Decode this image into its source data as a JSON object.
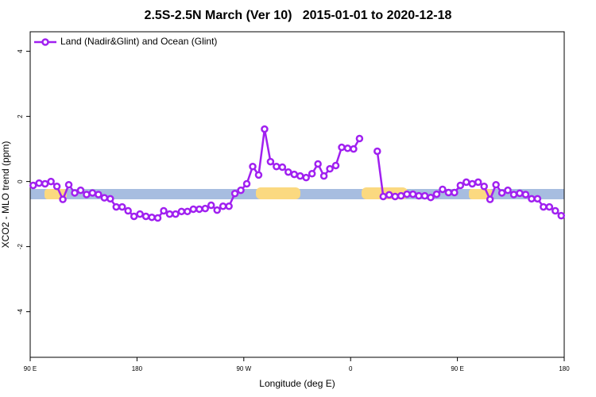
{
  "chart_data": {
    "type": "line",
    "title": "2.5S-2.5N March (Ver 10)   2015-01-01 to 2020-12-18",
    "x_label": "Longitude (deg E)",
    "y_label": "XCO2 - MLO trend (ppm)",
    "xlim": [
      90,
      540
    ],
    "ylim": [
      -5.4,
      4.6
    ],
    "xticks": [
      {
        "value": 90,
        "label": "90 E"
      },
      {
        "value": 180,
        "label": "180"
      },
      {
        "value": 270,
        "label": "90 W"
      },
      {
        "value": 360,
        "label": "0"
      },
      {
        "value": 450,
        "label": "90 E"
      },
      {
        "value": 540,
        "label": "180"
      }
    ],
    "yticks": [
      -4,
      -2,
      0,
      2,
      4
    ],
    "legend_position": "top-left",
    "x": [
      92.5,
      97.5,
      102.5,
      107.5,
      112.5,
      117.5,
      122.5,
      127.5,
      132.5,
      137.5,
      142.5,
      147.5,
      152.5,
      157.5,
      162.5,
      167.5,
      172.5,
      177.5,
      182.5,
      187.5,
      192.5,
      197.5,
      202.5,
      207.5,
      212.5,
      217.5,
      222.5,
      227.5,
      232.5,
      237.5,
      242.5,
      247.5,
      252.5,
      257.5,
      262.5,
      267.5,
      272.5,
      277.5,
      282.5,
      287.5,
      292.5,
      297.5,
      302.5,
      307.5,
      312.5,
      317.5,
      322.5,
      327.5,
      332.5,
      337.5,
      342.5,
      347.5,
      352.5,
      357.5,
      362.5,
      367.5,
      372.5,
      377.5,
      382.5,
      387.5,
      392.5,
      397.5,
      402.5,
      407.5,
      412.5,
      417.5,
      422.5,
      427.5,
      432.5,
      437.5,
      442.5,
      447.5,
      452.5,
      457.5,
      462.5,
      467.5,
      472.5,
      477.5,
      482.5,
      487.5,
      492.5,
      497.5,
      502.5,
      507.5,
      512.5,
      517.5,
      522.5,
      527.5,
      532.5,
      537.5
    ],
    "series": [
      {
        "name": "Land (Nadir&Glint) and Ocean (Glint)",
        "color": "#a020f0",
        "values": [
          -0.12,
          -0.05,
          -0.07,
          0,
          -0.15,
          -0.55,
          -0.1,
          -0.35,
          -0.27,
          -0.4,
          -0.35,
          -0.4,
          -0.5,
          -0.53,
          -0.78,
          -0.78,
          -0.9,
          -1.07,
          -1.0,
          -1.07,
          -1.1,
          -1.12,
          -0.9,
          -1.0,
          -1.0,
          -0.92,
          -0.92,
          -0.85,
          -0.85,
          -0.83,
          -0.73,
          -0.88,
          -0.76,
          -0.76,
          -0.37,
          -0.27,
          -0.07,
          0.46,
          0.2,
          1.61,
          0.61,
          0.46,
          0.44,
          0.29,
          0.22,
          0.17,
          0.12,
          0.24,
          0.54,
          0.17,
          0.39,
          0.49,
          1.05,
          1.02,
          1.0,
          1.32,
          null,
          null,
          0.93,
          -0.46,
          -0.41,
          -0.46,
          -0.44,
          -0.39,
          -0.39,
          -0.44,
          -0.44,
          -0.49,
          -0.39,
          -0.24,
          -0.34,
          -0.34,
          -0.12,
          -0.02,
          -0.07,
          -0.02,
          -0.15,
          -0.55,
          -0.1,
          -0.35,
          -0.27,
          -0.4,
          -0.36,
          -0.4,
          -0.53,
          -0.53,
          -0.78,
          -0.78,
          -0.9,
          -1.05
        ]
      }
    ]
  }
}
